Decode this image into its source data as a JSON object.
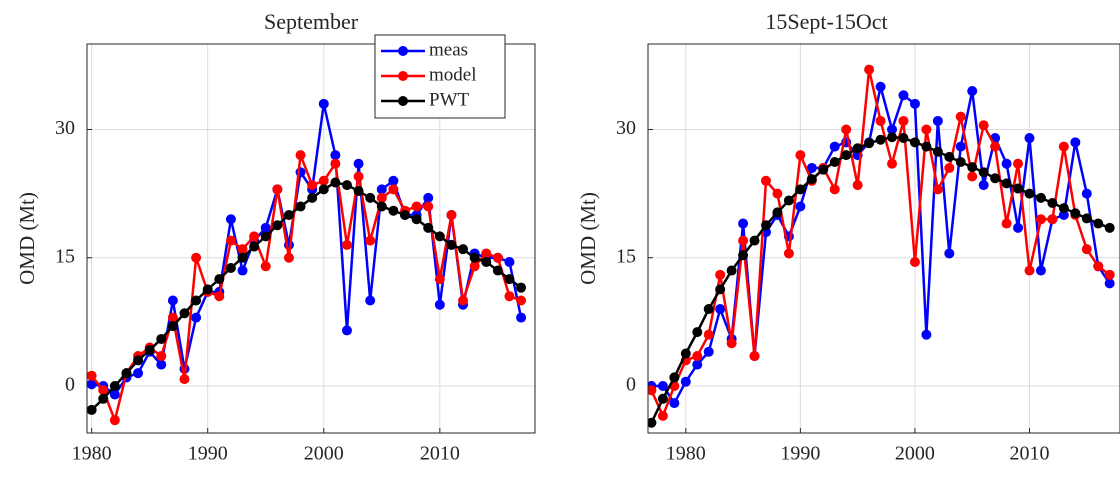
{
  "chart_data": [
    {
      "type": "line",
      "title": "September",
      "ylabel": "OMD (Mt)",
      "x": [
        1980,
        1981,
        1982,
        1983,
        1984,
        1985,
        1986,
        1987,
        1988,
        1989,
        1990,
        1991,
        1992,
        1993,
        1994,
        1995,
        1996,
        1997,
        1998,
        1999,
        2000,
        2001,
        2002,
        2003,
        2004,
        2005,
        2006,
        2007,
        2008,
        2009,
        2010,
        2011,
        2012,
        2013,
        2014,
        2015,
        2016,
        2017
      ],
      "series": [
        {
          "name": "meas",
          "color": "#0000ff",
          "values": [
            0.2,
            0,
            -1,
            1,
            1.5,
            4,
            2.5,
            10,
            2,
            8,
            11,
            11,
            19.5,
            13.5,
            17,
            18.5,
            23,
            16.5,
            25,
            23,
            33,
            27,
            6.5,
            26,
            10,
            23,
            24,
            20,
            20,
            22,
            9.5,
            20,
            9.5,
            15.5,
            15,
            15,
            14.5,
            8
          ]
        },
        {
          "name": "model",
          "color": "#ff0000",
          "values": [
            1.2,
            -0.5,
            -4,
            1.5,
            3.5,
            4.5,
            3.5,
            8,
            0.8,
            15,
            11,
            10.5,
            17,
            16,
            17.5,
            14,
            23,
            15,
            27,
            23.5,
            24,
            26,
            16.5,
            24.5,
            17,
            22,
            23,
            20.5,
            21,
            21,
            12.5,
            20,
            10,
            14,
            15.5,
            15,
            10.5,
            10
          ]
        },
        {
          "name": "PWT",
          "color": "#000000",
          "values": [
            -2.8,
            -1.5,
            0,
            1.5,
            3,
            4.2,
            5.5,
            7,
            8.5,
            10,
            11.3,
            12.5,
            13.8,
            15,
            16.3,
            17.5,
            18.8,
            20,
            21,
            22,
            23,
            23.8,
            23.5,
            22.8,
            22,
            21,
            20.5,
            20,
            19.5,
            18.5,
            17.5,
            16.5,
            16,
            15,
            14.5,
            13.5,
            12.5,
            11.5
          ]
        }
      ],
      "xlim": [
        1979.6,
        2018.2
      ],
      "ylim": [
        -5.5,
        40
      ],
      "xticks": [
        1980,
        1990,
        2000,
        2010
      ],
      "yticks": [
        0,
        15,
        30
      ],
      "grid": true,
      "legend": "upper right"
    },
    {
      "type": "line",
      "title": "15Sept-15Oct",
      "ylabel": "OMD (Mt)",
      "x": [
        1977,
        1978,
        1979,
        1980,
        1981,
        1982,
        1983,
        1984,
        1985,
        1986,
        1987,
        1988,
        1989,
        1990,
        1991,
        1992,
        1993,
        1994,
        1995,
        1996,
        1997,
        1998,
        1999,
        2000,
        2001,
        2002,
        2003,
        2004,
        2005,
        2006,
        2007,
        2008,
        2009,
        2010,
        2011,
        2012,
        2013,
        2014,
        2015,
        2016,
        2017
      ],
      "series": [
        {
          "name": "meas",
          "color": "#0000ff",
          "values": [
            0,
            0,
            -2,
            0.5,
            2.5,
            4,
            9,
            5.5,
            19,
            3.5,
            18,
            20,
            17.5,
            21,
            25.5,
            25.5,
            28,
            28.5,
            27,
            28.5,
            35,
            30,
            34,
            33,
            6,
            31,
            15.5,
            28,
            34.5,
            23.5,
            29,
            26,
            18.5,
            29,
            13.5,
            19.5,
            20,
            28.5,
            22.5,
            14,
            12
          ]
        },
        {
          "name": "model",
          "color": "#ff0000",
          "values": [
            -0.5,
            -3.5,
            0,
            3,
            3.5,
            6,
            13,
            5,
            17,
            3.5,
            24,
            22.5,
            15.5,
            27,
            24,
            25.5,
            23,
            30,
            23.5,
            37,
            31,
            26,
            31,
            14.5,
            30,
            23,
            25.5,
            31.5,
            24.5,
            30.5,
            28,
            19,
            26,
            13.5,
            19.5,
            19.5,
            28,
            20,
            16,
            14,
            13
          ]
        },
        {
          "name": "PWT",
          "color": "#000000",
          "values": [
            -4.3,
            -1.5,
            1,
            3.8,
            6.3,
            9,
            11.3,
            13.5,
            15.3,
            17,
            18.8,
            20.3,
            21.7,
            23,
            24.2,
            25.3,
            26.2,
            27,
            27.8,
            28.4,
            28.8,
            29.1,
            29,
            28.5,
            28,
            27.4,
            26.8,
            26.2,
            25.6,
            25,
            24.3,
            23.7,
            23.1,
            22.5,
            22,
            21.4,
            20.8,
            20.2,
            19.6,
            19,
            18.5
          ]
        }
      ],
      "xlim": [
        1976.7,
        2017.9
      ],
      "ylim": [
        -5.5,
        40
      ],
      "xticks": [
        1980,
        1990,
        2000,
        2010
      ],
      "yticks": [
        0,
        15,
        30
      ],
      "grid": true
    }
  ]
}
